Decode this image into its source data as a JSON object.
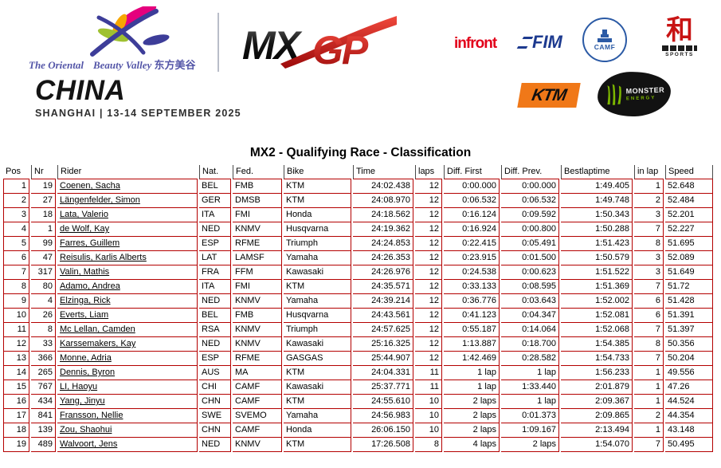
{
  "header": {
    "venue": {
      "part1": "The Oriental",
      "part2": "Beauty Valley",
      "cn": "东方美谷"
    },
    "mxgp": {
      "mx": "MX",
      "gp": "GP"
    },
    "country": "CHINA",
    "location_date": "SHANGHAI | 13-14 SEPTEMBER 2025",
    "sponsors": {
      "infront": "infront",
      "fim": "FIM",
      "camf": "CAMF",
      "hsports_glyph": "和",
      "hsports_label": "SPORTS",
      "ktm": "KTM",
      "monster_top": "MONSTER",
      "monster_bottom": "ENERGY"
    }
  },
  "title": "MX2 - Qualifying Race - Classification",
  "table": {
    "columns": [
      "Pos",
      "Nr",
      "Rider",
      "Nat.",
      "Fed.",
      "Bike",
      "Time",
      "laps",
      "Diff. First",
      "Diff. Prev.",
      "Bestlaptime",
      "in lap",
      "Speed"
    ],
    "rows": [
      [
        "1",
        "19",
        "Coenen, Sacha",
        "BEL",
        "FMB",
        "KTM",
        "24:02.438",
        "12",
        "0:00.000",
        "0:00.000",
        "1:49.405",
        "1",
        "52.648"
      ],
      [
        "2",
        "27",
        "Längenfelder, Simon",
        "GER",
        "DMSB",
        "KTM",
        "24:08.970",
        "12",
        "0:06.532",
        "0:06.532",
        "1:49.748",
        "2",
        "52.484"
      ],
      [
        "3",
        "18",
        "Lata, Valerio",
        "ITA",
        "FMI",
        "Honda",
        "24:18.562",
        "12",
        "0:16.124",
        "0:09.592",
        "1:50.343",
        "3",
        "52.201"
      ],
      [
        "4",
        "1",
        "de Wolf, Kay",
        "NED",
        "KNMV",
        "Husqvarna",
        "24:19.362",
        "12",
        "0:16.924",
        "0:00.800",
        "1:50.288",
        "7",
        "52.227"
      ],
      [
        "5",
        "99",
        "Farres, Guillem",
        "ESP",
        "RFME",
        "Triumph",
        "24:24.853",
        "12",
        "0:22.415",
        "0:05.491",
        "1:51.423",
        "8",
        "51.695"
      ],
      [
        "6",
        "47",
        "Reisulis, Karlis Alberts",
        "LAT",
        "LAMSF",
        "Yamaha",
        "24:26.353",
        "12",
        "0:23.915",
        "0:01.500",
        "1:50.579",
        "3",
        "52.089"
      ],
      [
        "7",
        "317",
        "Valin, Mathis",
        "FRA",
        "FFM",
        "Kawasaki",
        "24:26.976",
        "12",
        "0:24.538",
        "0:00.623",
        "1:51.522",
        "3",
        "51.649"
      ],
      [
        "8",
        "80",
        "Adamo, Andrea",
        "ITA",
        "FMI",
        "KTM",
        "24:35.571",
        "12",
        "0:33.133",
        "0:08.595",
        "1:51.369",
        "7",
        "51.72"
      ],
      [
        "9",
        "4",
        "Elzinga, Rick",
        "NED",
        "KNMV",
        "Yamaha",
        "24:39.214",
        "12",
        "0:36.776",
        "0:03.643",
        "1:52.002",
        "6",
        "51.428"
      ],
      [
        "10",
        "26",
        "Everts, Liam",
        "BEL",
        "FMB",
        "Husqvarna",
        "24:43.561",
        "12",
        "0:41.123",
        "0:04.347",
        "1:52.081",
        "6",
        "51.391"
      ],
      [
        "11",
        "8",
        "Mc Lellan, Camden",
        "RSA",
        "KNMV",
        "Triumph",
        "24:57.625",
        "12",
        "0:55.187",
        "0:14.064",
        "1:52.068",
        "7",
        "51.397"
      ],
      [
        "12",
        "33",
        "Karssemakers, Kay",
        "NED",
        "KNMV",
        "Kawasaki",
        "25:16.325",
        "12",
        "1:13.887",
        "0:18.700",
        "1:54.385",
        "8",
        "50.356"
      ],
      [
        "13",
        "366",
        "Monne, Adria",
        "ESP",
        "RFME",
        "GASGAS",
        "25:44.907",
        "12",
        "1:42.469",
        "0:28.582",
        "1:54.733",
        "7",
        "50.204"
      ],
      [
        "14",
        "265",
        "Dennis, Byron",
        "AUS",
        "MA",
        "KTM",
        "24:04.331",
        "11",
        "1 lap",
        "1 lap",
        "1:56.233",
        "1",
        "49.556"
      ],
      [
        "15",
        "767",
        "LI, Haoyu",
        "CHI",
        "CAMF",
        "Kawasaki",
        "25:37.771",
        "11",
        "1 lap",
        "1:33.440",
        "2:01.879",
        "1",
        "47.26"
      ],
      [
        "16",
        "434",
        "Yang, Jinyu",
        "CHN",
        "CAMF",
        "KTM",
        "24:55.610",
        "10",
        "2 laps",
        "1 lap",
        "2:09.367",
        "1",
        "44.524"
      ],
      [
        "17",
        "841",
        "Fransson, Nellie",
        "SWE",
        "SVEMO",
        "Yamaha",
        "24:56.983",
        "10",
        "2 laps",
        "0:01.373",
        "2:09.865",
        "2",
        "44.354"
      ],
      [
        "18",
        "139",
        "Zou, Shaohui",
        "CHN",
        "CAMF",
        "Honda",
        "26:06.150",
        "10",
        "2 laps",
        "1:09.167",
        "2:13.494",
        "1",
        "43.148"
      ],
      [
        "19",
        "489",
        "Walvoort, Jens",
        "NED",
        "KNMV",
        "KTM",
        "17:26.508",
        "8",
        "4 laps",
        "2 laps",
        "1:54.070",
        "7",
        "50.495"
      ]
    ]
  },
  "colors": {
    "table_border_red": "#b40000",
    "header_divider_gray": "#4a4a4a",
    "mxgp_red": "#c81e14",
    "infront_red": "#e2001a",
    "fim_blue": "#1d3a8f",
    "camf_blue": "#2b5aa5",
    "ktm_orange": "#f07818",
    "monster_green": "#7db700",
    "venue_blue": "#5456a8"
  }
}
